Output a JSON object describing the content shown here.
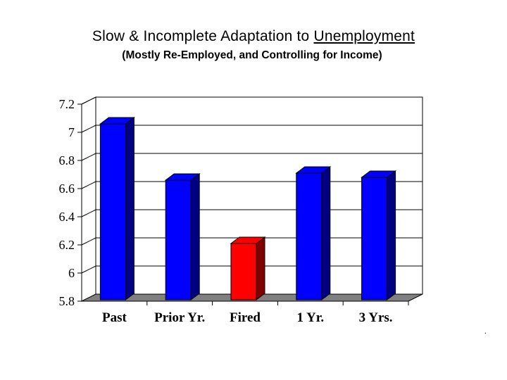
{
  "title": {
    "prefix": "Slow & Incomplete Adaptation to ",
    "underlined": "Unemployment"
  },
  "subtitle": "(Mostly Re-Employed, and Controlling for Income)",
  "footnote": ".",
  "chart_data": {
    "type": "bar",
    "categories": [
      "Past",
      "Prior Yr.",
      "Fired",
      "1 Yr.",
      "3 Yrs."
    ],
    "values": [
      7.08,
      6.68,
      6.23,
      6.73,
      6.7
    ],
    "colors": [
      "#0000ff",
      "#0000ff",
      "#ff0000",
      "#0000ff",
      "#0000ff"
    ],
    "ylim": [
      5.8,
      7.2
    ],
    "yticks": [
      "5.8",
      "6",
      "6.2",
      "6.4",
      "6.6",
      "6.8",
      "7",
      "7.2"
    ],
    "grid": true,
    "legend": "none",
    "style": "3d"
  }
}
